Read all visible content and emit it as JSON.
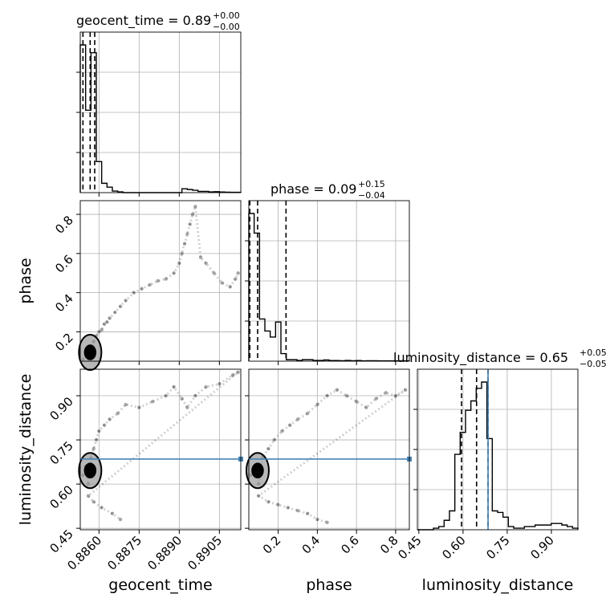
{
  "chart_data": {
    "type": "corner",
    "parameters": [
      "geocent_time",
      "phase",
      "luminosity_distance"
    ],
    "axis_labels": {
      "geocent_time": "geocent_time",
      "phase": "phase",
      "luminosity_distance": "luminosity_distance"
    },
    "titles": [
      {
        "param": "geocent_time",
        "text": "geocent_time = 0.89",
        "plus": "+0.00",
        "minus": "−0.00"
      },
      {
        "param": "phase",
        "text": "phase = 0.09",
        "plus": "+0.15",
        "minus": "−0.04"
      },
      {
        "param": "luminosity_distance",
        "text": "luminosity_distance = 0.65",
        "plus": "+0.05",
        "minus": "−0.05"
      }
    ],
    "ranges": {
      "geocent_time": [
        0.8853,
        0.8913
      ],
      "phase": [
        0.05,
        0.87
      ],
      "luminosity_distance": [
        0.445,
        0.99
      ]
    },
    "tick_labels": {
      "geocent_time": [
        "0.8860",
        "0.8875",
        "0.8890",
        "0.8905"
      ],
      "phase_x": [
        "0.2",
        "0.4",
        "0.6",
        "0.8"
      ],
      "phase_y": [
        "0.2",
        "0.4",
        "0.6",
        "0.8"
      ],
      "luminosity_distance": [
        "0.45",
        "0.60",
        "0.75",
        "0.90"
      ]
    },
    "tick_values": {
      "geocent_time": [
        0.886,
        0.8875,
        0.889,
        0.8905
      ],
      "phase": [
        0.2,
        0.4,
        0.6,
        0.8
      ],
      "luminosity_distance": [
        0.45,
        0.6,
        0.75,
        0.9
      ]
    },
    "truth": {
      "luminosity_distance": 0.685
    },
    "quantiles": {
      "geocent_time": [
        0.8854,
        0.88567,
        0.88584
      ],
      "phase": [
        0.055,
        0.095,
        0.24
      ],
      "luminosity_distance": [
        0.595,
        0.646,
        0.685
      ]
    },
    "histograms": {
      "geocent_time": {
        "edges": [
          0.8853,
          0.8855,
          0.8857,
          0.8859,
          0.8861,
          0.8863,
          0.8865,
          0.8867,
          0.8869,
          0.8871,
          0.8873,
          0.8875,
          0.8877,
          0.8879,
          0.8881,
          0.8883,
          0.8885,
          0.8887,
          0.8889,
          0.8891,
          0.8893,
          0.8895,
          0.8897,
          0.8899,
          0.8901,
          0.8903,
          0.8905,
          0.8907,
          0.8909,
          0.8911,
          0.8913
        ],
        "counts": [
          0.95,
          0.53,
          0.9,
          0.2,
          0.06,
          0.035,
          0.01,
          0.005,
          0,
          0,
          0,
          0,
          0,
          0,
          0,
          0,
          0,
          0,
          0,
          0.025,
          0.02,
          0.015,
          0.008,
          0.008,
          0.005,
          0.006,
          0.004,
          0.003,
          0.002,
          0.002
        ]
      },
      "phase": {
        "edges": [
          0.05,
          0.0773,
          0.1047,
          0.132,
          0.1593,
          0.1867,
          0.214,
          0.2413,
          0.2687,
          0.296,
          0.3233,
          0.3507,
          0.378,
          0.4053,
          0.4327,
          0.46,
          0.4873,
          0.5147,
          0.542,
          0.5693,
          0.5967,
          0.624,
          0.6513,
          0.6787,
          0.706,
          0.7333,
          0.7607,
          0.788,
          0.8153,
          0.8427,
          0.87
        ],
        "counts": [
          0.98,
          0.85,
          0.28,
          0.2,
          0.16,
          0.26,
          0.05,
          0.01,
          0.01,
          0.005,
          0.01,
          0.01,
          0.005,
          0.005,
          0.008,
          0.004,
          0.004,
          0.003,
          0.005,
          0.003,
          0.004,
          0.002,
          0.003,
          0.003,
          0.002,
          0.002,
          0.002,
          0.002,
          0.002,
          0.002
        ]
      },
      "luminosity_distance": {
        "edges": [
          0.445,
          0.4632,
          0.4813,
          0.4995,
          0.5177,
          0.5358,
          0.554,
          0.5722,
          0.5903,
          0.6085,
          0.6267,
          0.6448,
          0.663,
          0.6812,
          0.6993,
          0.7175,
          0.7357,
          0.7538,
          0.772,
          0.7902,
          0.8083,
          0.8265,
          0.8447,
          0.8628,
          0.881,
          0.8992,
          0.9173,
          0.9355,
          0.9537,
          0.9718,
          0.99
        ],
        "counts": [
          0,
          0,
          0,
          0.01,
          0.02,
          0.06,
          0.12,
          0.48,
          0.62,
          0.76,
          0.82,
          0.9,
          0.94,
          0.58,
          0.12,
          0.11,
          0.08,
          0.02,
          0.01,
          0.01,
          0.02,
          0.02,
          0.03,
          0.03,
          0.03,
          0.04,
          0.04,
          0.03,
          0.02,
          0.01
        ]
      }
    },
    "samples": {
      "geocent_time_vs_phase": [
        [
          0.8854,
          0.06
        ],
        [
          0.8855,
          0.08
        ],
        [
          0.8856,
          0.1
        ],
        [
          0.8857,
          0.12
        ],
        [
          0.8858,
          0.15
        ],
        [
          0.8859,
          0.18
        ],
        [
          0.886,
          0.2
        ],
        [
          0.8861,
          0.21
        ],
        [
          0.8862,
          0.24
        ],
        [
          0.8863,
          0.25
        ],
        [
          0.8864,
          0.27
        ],
        [
          0.8866,
          0.3
        ],
        [
          0.8868,
          0.33
        ],
        [
          0.887,
          0.36
        ],
        [
          0.8873,
          0.4
        ],
        [
          0.8876,
          0.42
        ],
        [
          0.8879,
          0.44
        ],
        [
          0.8882,
          0.46
        ],
        [
          0.8885,
          0.47
        ],
        [
          0.8888,
          0.5
        ],
        [
          0.889,
          0.55
        ],
        [
          0.8891,
          0.6
        ],
        [
          0.8892,
          0.65
        ],
        [
          0.8893,
          0.7
        ],
        [
          0.8894,
          0.75
        ],
        [
          0.8895,
          0.8
        ],
        [
          0.8896,
          0.84
        ],
        [
          0.8898,
          0.58
        ],
        [
          0.89,
          0.55
        ],
        [
          0.8903,
          0.5
        ],
        [
          0.8906,
          0.45
        ],
        [
          0.8909,
          0.43
        ],
        [
          0.8911,
          0.47
        ],
        [
          0.8912,
          0.5
        ]
      ],
      "geocent_time_vs_luminosity_distance": [
        [
          0.8854,
          0.63
        ],
        [
          0.8855,
          0.66
        ],
        [
          0.8856,
          0.6
        ],
        [
          0.8857,
          0.69
        ],
        [
          0.8858,
          0.72
        ],
        [
          0.8859,
          0.75
        ],
        [
          0.886,
          0.78
        ],
        [
          0.8862,
          0.8
        ],
        [
          0.8864,
          0.82
        ],
        [
          0.8867,
          0.84
        ],
        [
          0.887,
          0.87
        ],
        [
          0.8875,
          0.86
        ],
        [
          0.888,
          0.88
        ],
        [
          0.8885,
          0.9
        ],
        [
          0.8888,
          0.93
        ],
        [
          0.8891,
          0.89
        ],
        [
          0.8893,
          0.86
        ],
        [
          0.8896,
          0.9
        ],
        [
          0.89,
          0.93
        ],
        [
          0.8905,
          0.94
        ],
        [
          0.891,
          0.97
        ],
        [
          0.8912,
          0.98
        ],
        [
          0.8856,
          0.56
        ],
        [
          0.8858,
          0.54
        ],
        [
          0.8861,
          0.52
        ],
        [
          0.8865,
          0.5
        ],
        [
          0.8868,
          0.48
        ]
      ],
      "phase_vs_luminosity_distance": [
        [
          0.06,
          0.63
        ],
        [
          0.08,
          0.66
        ],
        [
          0.1,
          0.6
        ],
        [
          0.12,
          0.69
        ],
        [
          0.15,
          0.72
        ],
        [
          0.18,
          0.75
        ],
        [
          0.22,
          0.78
        ],
        [
          0.26,
          0.8
        ],
        [
          0.3,
          0.82
        ],
        [
          0.35,
          0.84
        ],
        [
          0.4,
          0.87
        ],
        [
          0.45,
          0.9
        ],
        [
          0.5,
          0.92
        ],
        [
          0.55,
          0.9
        ],
        [
          0.6,
          0.88
        ],
        [
          0.65,
          0.86
        ],
        [
          0.7,
          0.89
        ],
        [
          0.75,
          0.91
        ],
        [
          0.8,
          0.9
        ],
        [
          0.85,
          0.92
        ],
        [
          0.1,
          0.56
        ],
        [
          0.15,
          0.54
        ],
        [
          0.2,
          0.53
        ],
        [
          0.25,
          0.52
        ],
        [
          0.3,
          0.51
        ],
        [
          0.35,
          0.5
        ],
        [
          0.4,
          0.48
        ],
        [
          0.45,
          0.47
        ]
      ]
    }
  }
}
